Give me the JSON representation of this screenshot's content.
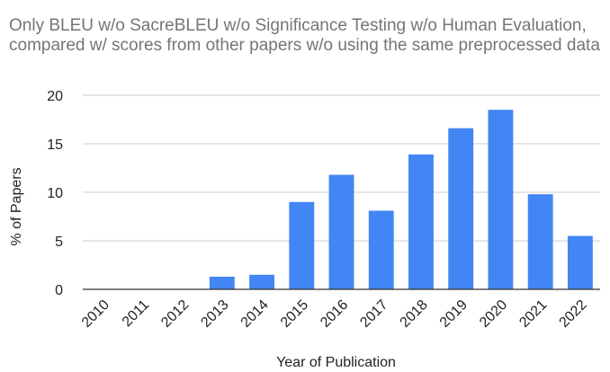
{
  "chart_data": {
    "type": "bar",
    "title": "Only BLEU w/o SacreBLEU w/o Significance Testing w/o Human Evaluation, compared w/ scores from other papers w/o using the same preprocessed data",
    "xlabel": "Year of Publication",
    "ylabel": "% of Papers",
    "categories": [
      "2010",
      "2011",
      "2012",
      "2013",
      "2014",
      "2015",
      "2016",
      "2017",
      "2018",
      "2019",
      "2020",
      "2021",
      "2022"
    ],
    "values": [
      0,
      0,
      0,
      1.3,
      1.5,
      9.0,
      11.8,
      8.1,
      13.9,
      16.6,
      18.5,
      9.8,
      5.5
    ],
    "ylim": [
      0,
      20
    ],
    "yticks": [
      "0",
      "5",
      "10",
      "15",
      "20"
    ],
    "grid": true,
    "legend": "none",
    "bar_color": "#4285f4",
    "grid_color": "#cccccc",
    "axis_color": "#333333"
  }
}
